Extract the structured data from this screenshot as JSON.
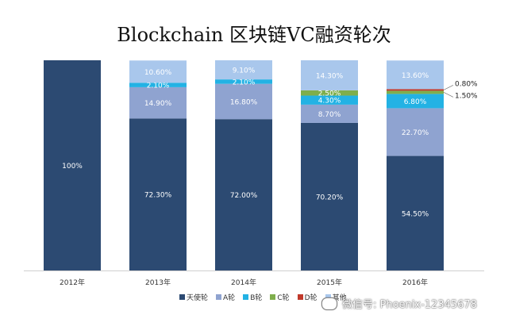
{
  "chart_data": {
    "type": "bar",
    "stacked": true,
    "title": "Blockchain 区块链VC融资轮次",
    "categories": [
      "2012年",
      "2013年",
      "2014年",
      "2015年",
      "2016年"
    ],
    "ylim": [
      0,
      100
    ],
    "legend_position": "bottom",
    "series": [
      {
        "name": "天使轮",
        "color": "#2c4a72",
        "values": [
          100,
          72.3,
          72.0,
          70.2,
          54.5
        ],
        "labels": [
          "100%",
          "72.30%",
          "72.00%",
          "70.20%",
          "54.50%"
        ]
      },
      {
        "name": "A轮",
        "color": "#8fa3d0",
        "values": [
          0,
          14.9,
          16.8,
          8.7,
          22.7
        ],
        "labels": [
          "",
          "14.90%",
          "16.80%",
          "8.70%",
          "22.70%"
        ]
      },
      {
        "name": "B轮",
        "color": "#23b2e4",
        "values": [
          0,
          2.1,
          2.1,
          4.3,
          6.8
        ],
        "labels": [
          "",
          "2.10%",
          "2.10%",
          "4.30%",
          "6.80%"
        ]
      },
      {
        "name": "C轮",
        "color": "#7fae4c",
        "values": [
          0,
          0,
          0,
          2.5,
          1.5
        ],
        "labels": [
          "",
          "",
          "",
          "2.50%",
          "1.50%"
        ]
      },
      {
        "name": "D轮",
        "color": "#c0392b",
        "values": [
          0,
          0,
          0,
          0,
          0.8
        ],
        "labels": [
          "",
          "",
          "",
          "",
          "0.80%"
        ]
      },
      {
        "name": "其他",
        "color": "#a9c7ec",
        "values": [
          0,
          10.6,
          9.1,
          14.3,
          13.6
        ],
        "labels": [
          "",
          "10.60%",
          "9.10%",
          "14.30%",
          "13.60%"
        ]
      }
    ]
  },
  "watermark": {
    "text": "微信号: Phoenix-12345678"
  }
}
